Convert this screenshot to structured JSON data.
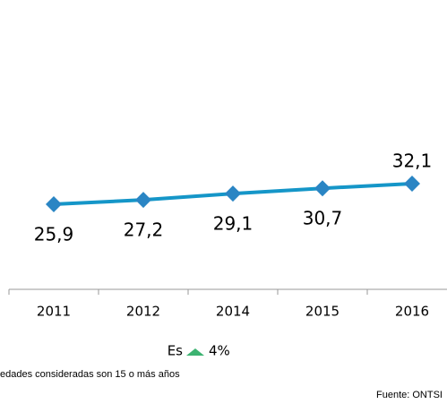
{
  "chart_data": {
    "type": "line",
    "categories": [
      "2011",
      "2012",
      "2014",
      "2015",
      "2016"
    ],
    "values": [
      25.9,
      27.2,
      29.1,
      30.7,
      32.1
    ],
    "value_labels": [
      "25,9",
      "27,2",
      "29,1",
      "30,7",
      "32,1"
    ],
    "color": "#1596c8",
    "marker_color": "#2a85c4",
    "change": {
      "label": "Es",
      "value": "4%",
      "color": "#3cb371"
    },
    "footnote": "edades consideradas son 15 o más años",
    "source": "Fuente: ONTSI"
  }
}
